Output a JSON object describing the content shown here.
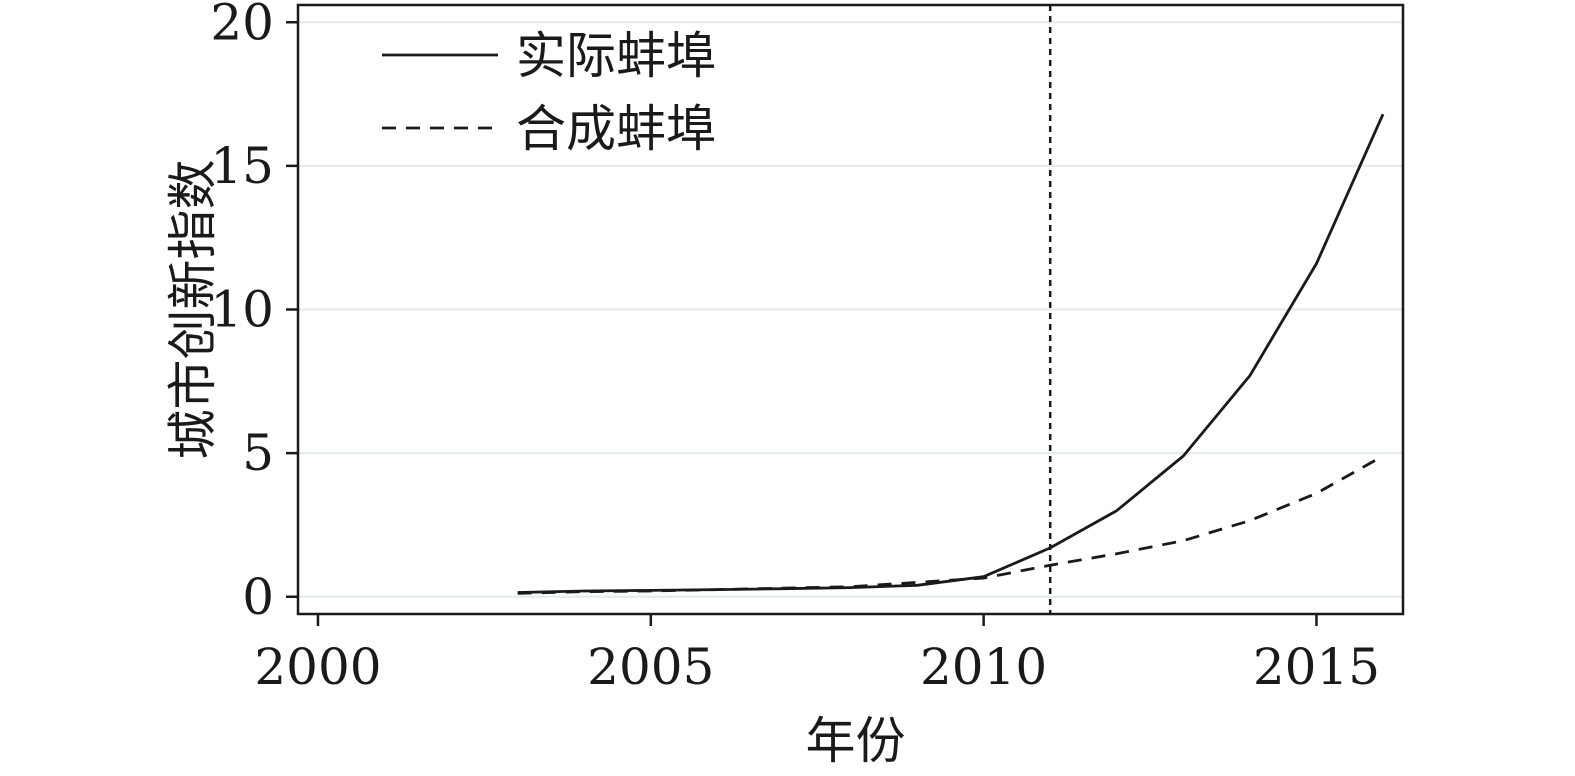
{
  "chart_data": {
    "type": "line",
    "xlabel": "年份",
    "ylabel": "城市创新指数",
    "xlim": [
      1999.7,
      2016.3
    ],
    "ylim": [
      -0.6,
      20.6
    ],
    "xticks": [
      2000,
      2005,
      2010,
      2015
    ],
    "yticks": [
      0,
      5,
      10,
      15,
      20
    ],
    "grid": "horizontal",
    "legend_position": "top-left",
    "series": [
      {
        "name": "实际蚌埠",
        "style": "solid",
        "x": [
          2003,
          2004,
          2005,
          2006,
          2007,
          2008,
          2009,
          2010,
          2011,
          2012,
          2013,
          2014,
          2015,
          2016
        ],
        "y": [
          0.15,
          0.2,
          0.22,
          0.25,
          0.28,
          0.32,
          0.4,
          0.7,
          1.7,
          3.0,
          4.9,
          7.7,
          11.6,
          16.8
        ]
      },
      {
        "name": "合成蚌埠",
        "style": "dashed",
        "x": [
          2003,
          2004,
          2005,
          2006,
          2007,
          2008,
          2009,
          2010,
          2011,
          2012,
          2013,
          2014,
          2015,
          2016
        ],
        "y": [
          0.12,
          0.18,
          0.2,
          0.25,
          0.3,
          0.35,
          0.5,
          0.65,
          1.1,
          1.5,
          1.95,
          2.65,
          3.6,
          4.9
        ]
      }
    ],
    "reference_line": {
      "x": 2011,
      "style": "dotted"
    }
  }
}
